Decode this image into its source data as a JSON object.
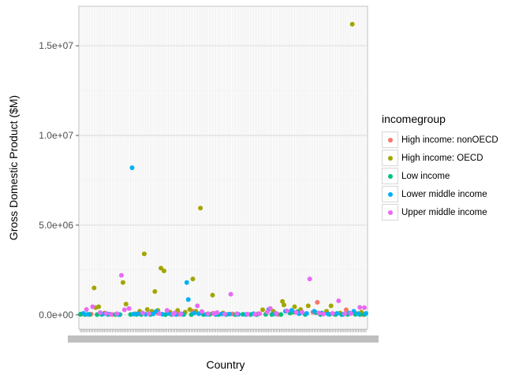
{
  "chart_data": {
    "type": "scatter",
    "xlabel": "Country",
    "ylabel": "Gross Domestic Product ($M)",
    "y_tick_labels": [
      "0.0e+00",
      "5.0e+06",
      "1.0e+07",
      "1.5e+07"
    ],
    "y_ticks": [
      0,
      5000000,
      10000000,
      15000000
    ],
    "ylim": [
      -800000,
      17200000
    ],
    "x_category_count": 189,
    "grid": true,
    "legend_title": "incomegroup",
    "legend_position": "right",
    "series": [
      {
        "name": "High income: nonOECD",
        "color": "#F8766D",
        "points": [
          [
            8,
            40000
          ],
          [
            22,
            20000
          ],
          [
            37,
            60000
          ],
          [
            52,
            90000
          ],
          [
            66,
            30000
          ],
          [
            75,
            200000
          ],
          [
            88,
            80000
          ],
          [
            101,
            50000
          ],
          [
            118,
            60000
          ],
          [
            131,
            25000
          ],
          [
            146,
            110000
          ],
          [
            154,
            150000
          ],
          [
            157,
            700000
          ],
          [
            168,
            40000
          ],
          [
            176,
            280000
          ],
          [
            183,
            70000
          ],
          [
            187,
            20000
          ]
        ]
      },
      {
        "name": "High income: OECD",
        "color": "#A3A500",
        "points": [
          [
            2,
            50000
          ],
          [
            10,
            1500000
          ],
          [
            11,
            400000
          ],
          [
            13,
            450000
          ],
          [
            17,
            100000
          ],
          [
            29,
            1800000
          ],
          [
            31,
            600000
          ],
          [
            40,
            200000
          ],
          [
            43,
            3400000
          ],
          [
            45,
            300000
          ],
          [
            48,
            200000
          ],
          [
            50,
            1300000
          ],
          [
            52,
            250000
          ],
          [
            54,
            2600000
          ],
          [
            56,
            2450000
          ],
          [
            60,
            150000
          ],
          [
            65,
            250000
          ],
          [
            70,
            150000
          ],
          [
            73,
            300000
          ],
          [
            75,
            2000000
          ],
          [
            77,
            200000
          ],
          [
            80,
            5950000
          ],
          [
            88,
            1100000
          ],
          [
            95,
            100000
          ],
          [
            121,
            280000
          ],
          [
            128,
            200000
          ],
          [
            134,
            750000
          ],
          [
            135,
            550000
          ],
          [
            142,
            450000
          ],
          [
            146,
            300000
          ],
          [
            151,
            500000
          ],
          [
            163,
            200000
          ],
          [
            166,
            500000
          ],
          [
            172,
            100000
          ],
          [
            180,
            16200000
          ],
          [
            186,
            150000
          ]
        ]
      },
      {
        "name": "Low income",
        "color": "#00BF7D",
        "points": [
          [
            1,
            30000
          ],
          [
            4,
            20000
          ],
          [
            7,
            15000
          ],
          [
            12,
            10000
          ],
          [
            15,
            25000
          ],
          [
            19,
            15000
          ],
          [
            24,
            20000
          ],
          [
            27,
            12000
          ],
          [
            34,
            18000
          ],
          [
            38,
            25000
          ],
          [
            41,
            15000
          ],
          [
            47,
            20000
          ],
          [
            57,
            10000
          ],
          [
            61,
            15000
          ],
          [
            69,
            20000
          ],
          [
            74,
            12000
          ],
          [
            82,
            18000
          ],
          [
            86,
            25000
          ],
          [
            92,
            15000
          ],
          [
            97,
            20000
          ],
          [
            103,
            12000
          ],
          [
            108,
            30000
          ],
          [
            113,
            18000
          ],
          [
            117,
            12000
          ],
          [
            123,
            30000
          ],
          [
            127,
            15000
          ],
          [
            133,
            20000
          ],
          [
            139,
            100000
          ],
          [
            141,
            150000
          ],
          [
            144,
            180000
          ],
          [
            149,
            15000
          ],
          [
            156,
            120000
          ],
          [
            159,
            20000
          ],
          [
            165,
            30000
          ],
          [
            169,
            15000
          ],
          [
            173,
            12000
          ],
          [
            177,
            25000
          ],
          [
            182,
            30000
          ],
          [
            185,
            20000
          ],
          [
            188,
            15000
          ]
        ]
      },
      {
        "name": "Lower middle income",
        "color": "#00B0F6",
        "points": [
          [
            3,
            80000
          ],
          [
            6,
            30000
          ],
          [
            16,
            50000
          ],
          [
            20,
            40000
          ],
          [
            26,
            20000
          ],
          [
            35,
            8200000
          ],
          [
            36,
            40000
          ],
          [
            39,
            60000
          ],
          [
            44,
            30000
          ],
          [
            49,
            50000
          ],
          [
            51,
            200000
          ],
          [
            55,
            35000
          ],
          [
            59,
            80000
          ],
          [
            64,
            20000
          ],
          [
            68,
            40000
          ],
          [
            71,
            1800000
          ],
          [
            72,
            850000
          ],
          [
            76,
            100000
          ],
          [
            79,
            60000
          ],
          [
            84,
            30000
          ],
          [
            90,
            20000
          ],
          [
            94,
            50000
          ],
          [
            99,
            40000
          ],
          [
            105,
            30000
          ],
          [
            110,
            20000
          ],
          [
            115,
            60000
          ],
          [
            125,
            300000
          ],
          [
            129,
            50000
          ],
          [
            136,
            200000
          ],
          [
            140,
            250000
          ],
          [
            145,
            60000
          ],
          [
            150,
            80000
          ],
          [
            155,
            200000
          ],
          [
            160,
            100000
          ],
          [
            164,
            50000
          ],
          [
            170,
            80000
          ],
          [
            174,
            30000
          ],
          [
            178,
            100000
          ],
          [
            181,
            200000
          ],
          [
            184,
            60000
          ],
          [
            189,
            80000
          ]
        ]
      },
      {
        "name": "Upper middle income",
        "color": "#E76BF3",
        "points": [
          [
            5,
            300000
          ],
          [
            9,
            450000
          ],
          [
            14,
            120000
          ],
          [
            18,
            80000
          ],
          [
            21,
            30000
          ],
          [
            25,
            60000
          ],
          [
            28,
            2200000
          ],
          [
            30,
            280000
          ],
          [
            33,
            350000
          ],
          [
            42,
            100000
          ],
          [
            46,
            60000
          ],
          [
            53,
            70000
          ],
          [
            58,
            250000
          ],
          [
            62,
            40000
          ],
          [
            63,
            100000
          ],
          [
            67,
            60000
          ],
          [
            78,
            500000
          ],
          [
            81,
            180000
          ],
          [
            85,
            60000
          ],
          [
            89,
            80000
          ],
          [
            91,
            120000
          ],
          [
            96,
            40000
          ],
          [
            100,
            1150000
          ],
          [
            104,
            60000
          ],
          [
            111,
            40000
          ],
          [
            116,
            30000
          ],
          [
            119,
            60000
          ],
          [
            124,
            150000
          ],
          [
            126,
            350000
          ],
          [
            130,
            80000
          ],
          [
            137,
            220000
          ],
          [
            143,
            140000
          ],
          [
            147,
            150000
          ],
          [
            152,
            2000000
          ],
          [
            158,
            100000
          ],
          [
            161,
            40000
          ],
          [
            167,
            80000
          ],
          [
            171,
            780000
          ],
          [
            175,
            60000
          ],
          [
            179,
            70000
          ],
          [
            185,
            420000
          ],
          [
            188,
            400000
          ]
        ]
      }
    ]
  }
}
